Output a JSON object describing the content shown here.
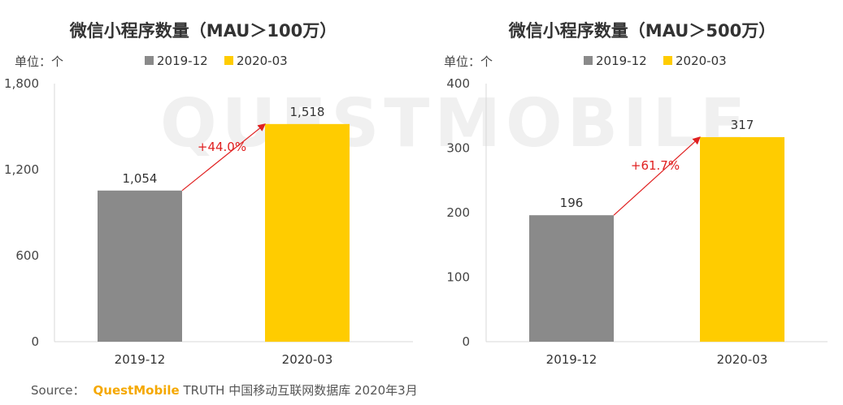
{
  "watermark": "QUESTMOBILE",
  "colors": {
    "series1": "#8a8a8a",
    "series2": "#ffcc00",
    "arrow": "#e02020"
  },
  "chart_data": [
    {
      "type": "bar",
      "title": "微信小程序数量（MAU＞100万）",
      "unit_label": "单位：个",
      "categories": [
        "2019-12",
        "2020-03"
      ],
      "series": [
        {
          "name": "2019-12",
          "values": [
            1054,
            null
          ]
        },
        {
          "name": "2020-03",
          "values": [
            null,
            1518
          ]
        }
      ],
      "value_labels": [
        "1,054",
        "1,518"
      ],
      "growth_label": "+44.0%",
      "ylim": [
        0,
        1800
      ],
      "yticks": [
        0,
        600,
        1200,
        1800
      ],
      "ytick_labels": [
        "0",
        "600",
        "1,200",
        "1,800"
      ],
      "legend_position": "top",
      "grid": false
    },
    {
      "type": "bar",
      "title": "微信小程序数量（MAU＞500万）",
      "unit_label": "单位：个",
      "categories": [
        "2019-12",
        "2020-03"
      ],
      "series": [
        {
          "name": "2019-12",
          "values": [
            196,
            null
          ]
        },
        {
          "name": "2020-03",
          "values": [
            null,
            317
          ]
        }
      ],
      "value_labels": [
        "196",
        "317"
      ],
      "growth_label": "+61.7%",
      "ylim": [
        0,
        400
      ],
      "yticks": [
        0,
        100,
        200,
        300,
        400
      ],
      "ytick_labels": [
        "0",
        "100",
        "200",
        "300",
        "400"
      ],
      "legend_position": "top",
      "grid": false
    }
  ],
  "source": {
    "label": "Source：",
    "brand": "QuestMobile",
    "text": "TRUTH 中国移动互联网数据库 2020年3月"
  }
}
